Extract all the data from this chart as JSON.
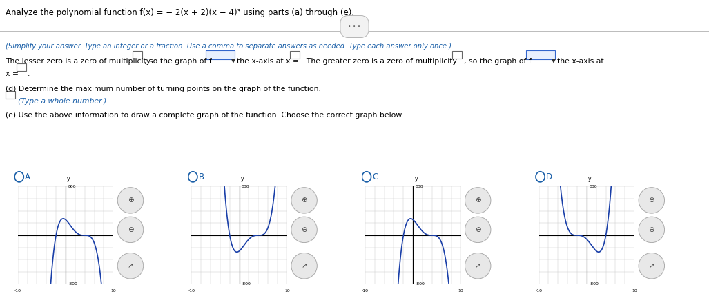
{
  "title_text": "Analyze the polynomial function f(x) = − 2(x + 2)(x − 4)³ using parts (a) through (e).",
  "simplify_instruction": "(Simplify your answer. Type an integer or a fraction. Use a comma to separate answers as needed. Type each answer only once.)",
  "lesser_zero_text": "The lesser zero is a zero of multiplicity",
  "so_graph_f_text": ", so the graph of f",
  "xaxis_text": "the x-axis at x =",
  "greater_zero_text": ". The greater zero is a zero of multiplicity",
  "so_graph_f2_text": ", so the graph of f",
  "xaxis2_text": "the x-axis at",
  "x_eq_text": "x =",
  "part_d_text": "(d) Determine the maximum number of turning points on the graph of the function.",
  "type_whole_text": "(Type a whole number.)",
  "part_e_text": "(e) Use the above information to draw a complete graph of the function. Choose the correct graph below.",
  "option_labels": [
    "A.",
    "B.",
    "C.",
    "D."
  ],
  "background_color": "#ffffff",
  "header_color": "#8B1A2B",
  "text_color": "#000000",
  "blue_text_color": "#1a5fa8",
  "grid_color": "#cccccc",
  "curve_color": "#1a3fa8",
  "axis_range": [
    -10,
    10
  ],
  "y_range": [
    -800,
    800
  ]
}
